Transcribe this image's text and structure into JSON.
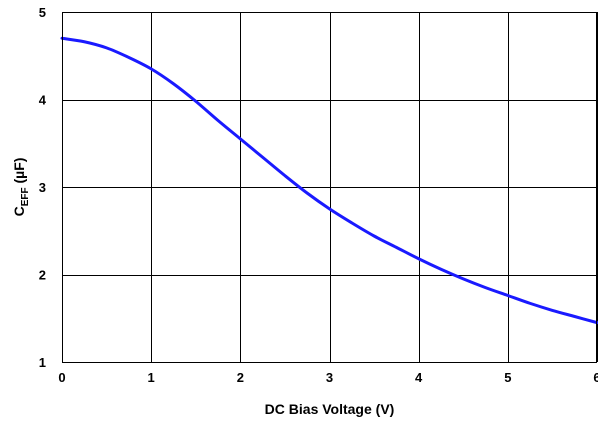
{
  "chart_data": {
    "type": "line",
    "title": "",
    "xlabel": "DC Bias Voltage (V)",
    "ylabel": {
      "main": "C",
      "sub": "EFF",
      "unit": " (µF)"
    },
    "xlim": [
      0,
      6
    ],
    "ylim": [
      1,
      5
    ],
    "xticks": [
      0,
      1,
      2,
      3,
      4,
      5,
      6
    ],
    "yticks": [
      1,
      2,
      3,
      4,
      5
    ],
    "xtick_labels": [
      "0",
      "1",
      "2",
      "3",
      "4",
      "5",
      "6"
    ],
    "ytick_labels": [
      "1",
      "2",
      "3",
      "4",
      "5"
    ],
    "grid": true,
    "legend": "none",
    "series": [
      {
        "color": "#1a1aff",
        "x": [
          0,
          0.25,
          0.5,
          0.75,
          1.0,
          1.25,
          1.5,
          1.75,
          2.0,
          2.25,
          2.5,
          2.75,
          3.0,
          3.25,
          3.5,
          3.75,
          4.0,
          4.25,
          4.5,
          4.75,
          5.0,
          5.25,
          5.5,
          5.75,
          6.0
        ],
        "y": [
          4.7,
          4.66,
          4.59,
          4.48,
          4.35,
          4.18,
          3.98,
          3.76,
          3.55,
          3.34,
          3.13,
          2.93,
          2.75,
          2.59,
          2.44,
          2.31,
          2.18,
          2.06,
          1.95,
          1.85,
          1.76,
          1.67,
          1.59,
          1.52,
          1.45
        ]
      }
    ]
  }
}
